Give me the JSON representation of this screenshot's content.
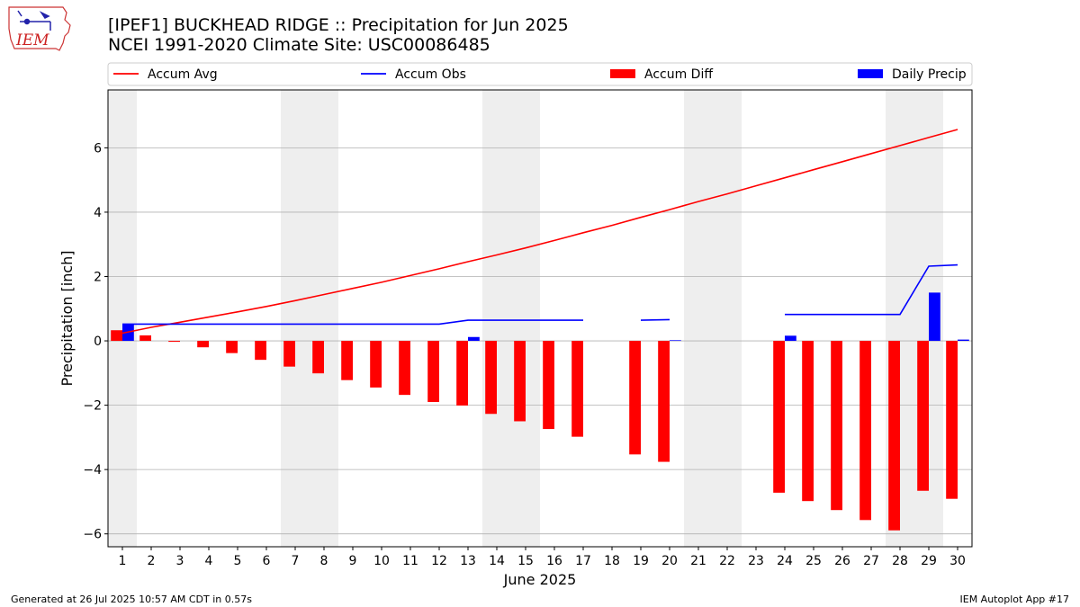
{
  "logo": {
    "text": "IEM",
    "icon": "iowa-map-weather-icon"
  },
  "header": {
    "title": "[IPEF1] BUCKHEAD RIDGE :: Precipitation for Jun 2025",
    "subtitle": "NCEI 1991-2020 Climate Site: USC00086485"
  },
  "footer": {
    "left": "Generated at 26 Jul 2025 10:57 AM CDT in 0.57s",
    "right": "IEM Autoplot App #17"
  },
  "colors": {
    "accum_avg": "#ff0000",
    "accum_obs": "#0000ff",
    "accum_diff": "#ff0000",
    "daily_precip": "#0000ff",
    "weekend_shade": "#eeeeee",
    "grid": "#b0b0b0"
  },
  "chart_data": {
    "type": "bar",
    "xlabel": "June 2025",
    "ylabel": "Precipitation [inch]",
    "xlim": [
      0.5,
      30.5
    ],
    "ylim": [
      -6.4,
      7.8
    ],
    "yticks": [
      -6,
      -4,
      -2,
      0,
      2,
      4,
      6
    ],
    "ytick_labels": [
      "−6",
      "−4",
      "−2",
      "0",
      "2",
      "4",
      "6"
    ],
    "grid": "horizontal",
    "legend_position": "top",
    "days": [
      1,
      2,
      3,
      4,
      5,
      6,
      7,
      8,
      9,
      10,
      11,
      12,
      13,
      14,
      15,
      16,
      17,
      18,
      19,
      20,
      21,
      22,
      23,
      24,
      25,
      26,
      27,
      28,
      29,
      30
    ],
    "weekend_shading": [
      [
        0.5,
        1.5
      ],
      [
        6.5,
        8.5
      ],
      [
        13.5,
        15.5
      ],
      [
        20.5,
        22.5
      ],
      [
        27.5,
        29.5
      ]
    ],
    "series": [
      {
        "name": "Accum Avg",
        "kind": "line",
        "values": [
          0.24,
          0.42,
          0.58,
          0.74,
          0.9,
          1.07,
          1.25,
          1.44,
          1.63,
          1.82,
          2.03,
          2.24,
          2.46,
          2.67,
          2.89,
          3.12,
          3.36,
          3.59,
          3.84,
          4.08,
          4.33,
          4.57,
          4.82,
          5.07,
          5.32,
          5.57,
          5.82,
          6.07,
          6.32,
          6.57
        ]
      },
      {
        "name": "Accum Obs",
        "kind": "line",
        "values": [
          0.52,
          0.52,
          0.52,
          0.52,
          0.52,
          0.52,
          0.52,
          0.52,
          0.52,
          0.52,
          0.52,
          0.52,
          0.64,
          0.64,
          0.64,
          0.64,
          0.64,
          null,
          0.64,
          0.66,
          null,
          null,
          null,
          0.82,
          0.82,
          0.82,
          0.82,
          0.82,
          2.32,
          2.36
        ]
      },
      {
        "name": "Accum Diff",
        "kind": "bar",
        "values": [
          0.33,
          0.17,
          -0.03,
          -0.2,
          -0.38,
          -0.59,
          -0.8,
          -1.01,
          -1.22,
          -1.45,
          -1.68,
          -1.9,
          -2.01,
          -2.27,
          -2.5,
          -2.74,
          -2.98,
          null,
          -3.53,
          -3.76,
          null,
          null,
          null,
          -4.72,
          -4.98,
          -5.26,
          -5.57,
          -5.89,
          -4.66,
          -4.91
        ]
      },
      {
        "name": "Daily Precip",
        "kind": "bar",
        "values": [
          0.52,
          0,
          0,
          0,
          0,
          0,
          0,
          0,
          0,
          0,
          0,
          0,
          0.12,
          0,
          0,
          0,
          0,
          null,
          0,
          0.02,
          null,
          null,
          null,
          0.16,
          0,
          0,
          0,
          0,
          1.5,
          0.04
        ]
      }
    ]
  }
}
